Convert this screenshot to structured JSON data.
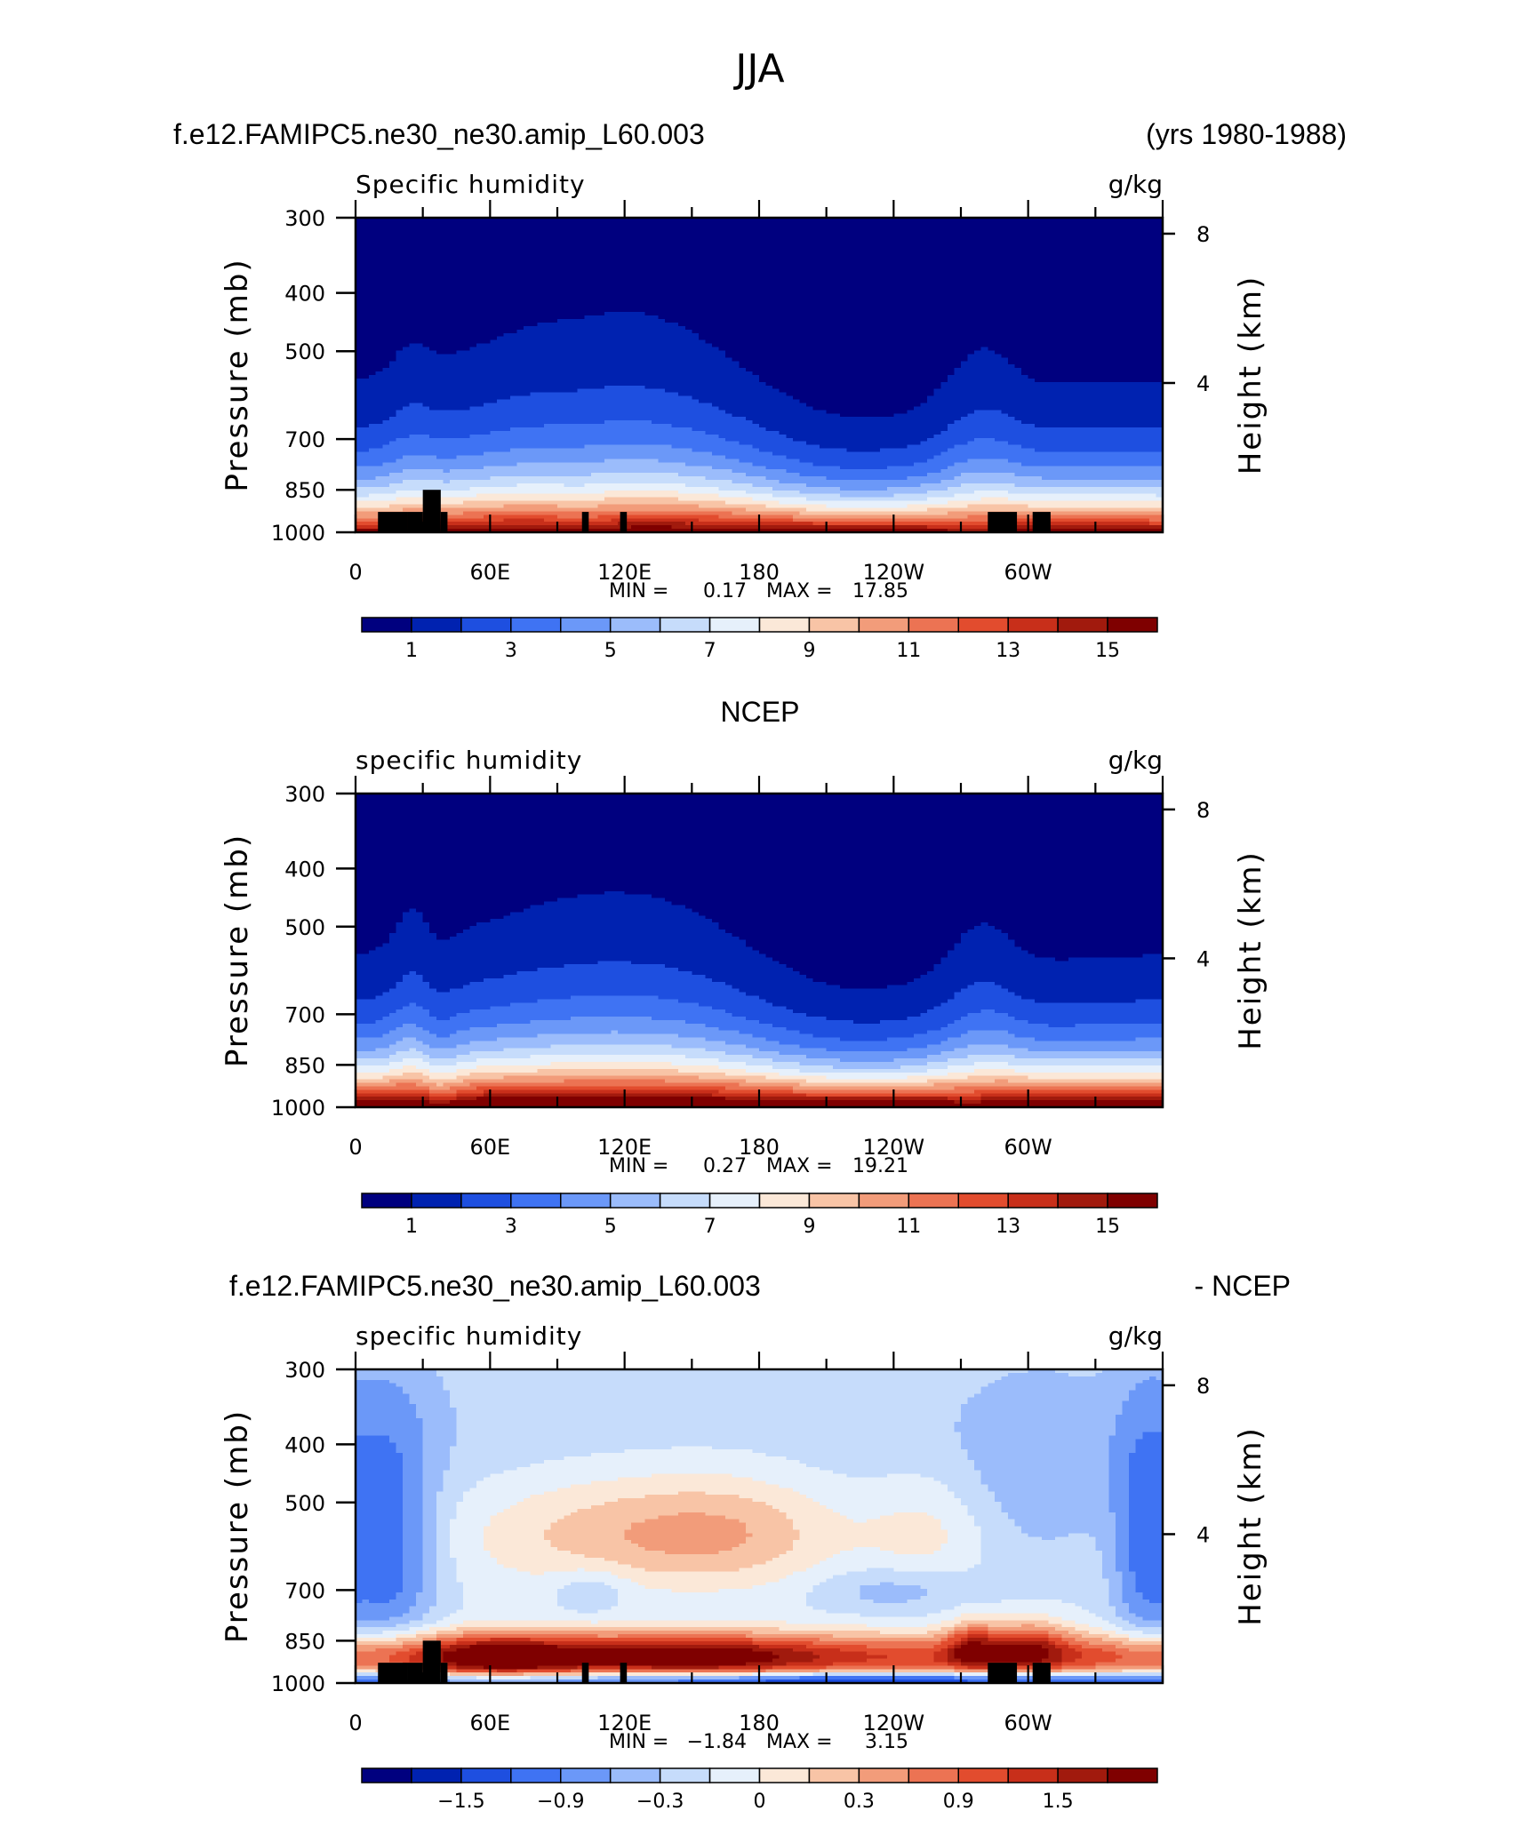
{
  "page": {
    "title": "JJA",
    "case_name": "f.e12.FAMIPC5.ne30_ne30.amip_L60.003",
    "years": "(yrs 1980-1988)",
    "obs_title": "NCEP",
    "diff_case_name": "f.e12.FAMIPC5.ne30_ne30.amip_L60.003",
    "diff_suffix": "- NCEP"
  },
  "colors": {
    "palette": [
      "#00007f",
      "#0022b0",
      "#1e4fe0",
      "#3f73f3",
      "#6b98f8",
      "#9bbcfb",
      "#c6dcfb",
      "#e6f0fb",
      "#fbe8d8",
      "#f8c4a6",
      "#f29c7a",
      "#ec7353",
      "#e24c2e",
      "#c82f1a",
      "#a11a0d",
      "#7f0000"
    ],
    "land_mask": "#000000"
  },
  "chart_data": [
    {
      "type": "heatmap",
      "id": "model",
      "title": "Specific humidity",
      "units": "g/kg",
      "ylabel": "Pressure (mb)",
      "ylabel_right": "Height (km)",
      "pressure_ticks": [
        "300",
        "400",
        "500",
        "700",
        "850",
        "1000"
      ],
      "pressure_values": [
        300,
        400,
        500,
        700,
        850,
        1000
      ],
      "height_ticks": [
        "8",
        "4"
      ],
      "height_values": [
        8,
        4
      ],
      "x_ticks": [
        "0",
        "60E",
        "120E",
        "180",
        "120W",
        "60W"
      ],
      "x_values": [
        0,
        60,
        120,
        180,
        240,
        300
      ],
      "xlim": [
        0,
        360
      ],
      "ylim": [
        300,
        1000
      ],
      "min_label": "MIN =",
      "min_value": "0.17",
      "max_label": "MAX =",
      "max_value": "17.85",
      "colorbar_labels": [
        "1",
        "3",
        "5",
        "7",
        "9",
        "11",
        "13",
        "15"
      ],
      "colorbar_levels": 15,
      "field": "model"
    },
    {
      "type": "heatmap",
      "id": "obs",
      "title": "specific humidity",
      "units": "g/kg",
      "ylabel": "Pressure (mb)",
      "ylabel_right": "Height (km)",
      "pressure_ticks": [
        "300",
        "400",
        "500",
        "700",
        "850",
        "1000"
      ],
      "pressure_values": [
        300,
        400,
        500,
        700,
        850,
        1000
      ],
      "height_ticks": [
        "8",
        "4"
      ],
      "height_values": [
        8,
        4
      ],
      "x_ticks": [
        "0",
        "60E",
        "120E",
        "180",
        "120W",
        "60W"
      ],
      "x_values": [
        0,
        60,
        120,
        180,
        240,
        300
      ],
      "xlim": [
        0,
        360
      ],
      "ylim": [
        300,
        1000
      ],
      "min_label": "MIN =",
      "min_value": "0.27",
      "max_label": "MAX =",
      "max_value": "19.21",
      "colorbar_labels": [
        "1",
        "3",
        "5",
        "7",
        "9",
        "11",
        "13",
        "15"
      ],
      "colorbar_levels": 15,
      "field": "obs"
    },
    {
      "type": "heatmap",
      "id": "diff",
      "title": "specific humidity",
      "units": "g/kg",
      "ylabel": "Pressure (mb)",
      "ylabel_right": "Height (km)",
      "pressure_ticks": [
        "300",
        "400",
        "500",
        "700",
        "850",
        "1000"
      ],
      "pressure_values": [
        300,
        400,
        500,
        700,
        850,
        1000
      ],
      "height_ticks": [
        "8",
        "4"
      ],
      "height_values": [
        8,
        4
      ],
      "x_ticks": [
        "0",
        "60E",
        "120E",
        "180",
        "120W",
        "60W"
      ],
      "x_values": [
        0,
        60,
        120,
        180,
        240,
        300
      ],
      "xlim": [
        0,
        360
      ],
      "ylim": [
        300,
        1000
      ],
      "min_label": "MIN =",
      "min_value": "−1.84",
      "max_label": "MAX =",
      "max_value": "3.15",
      "colorbar_labels": [
        "−1.5",
        "−0.9",
        "−0.3",
        "0",
        "0.3",
        "0.9",
        "1.5"
      ],
      "colorbar_levels": 15,
      "field": "diff"
    }
  ]
}
